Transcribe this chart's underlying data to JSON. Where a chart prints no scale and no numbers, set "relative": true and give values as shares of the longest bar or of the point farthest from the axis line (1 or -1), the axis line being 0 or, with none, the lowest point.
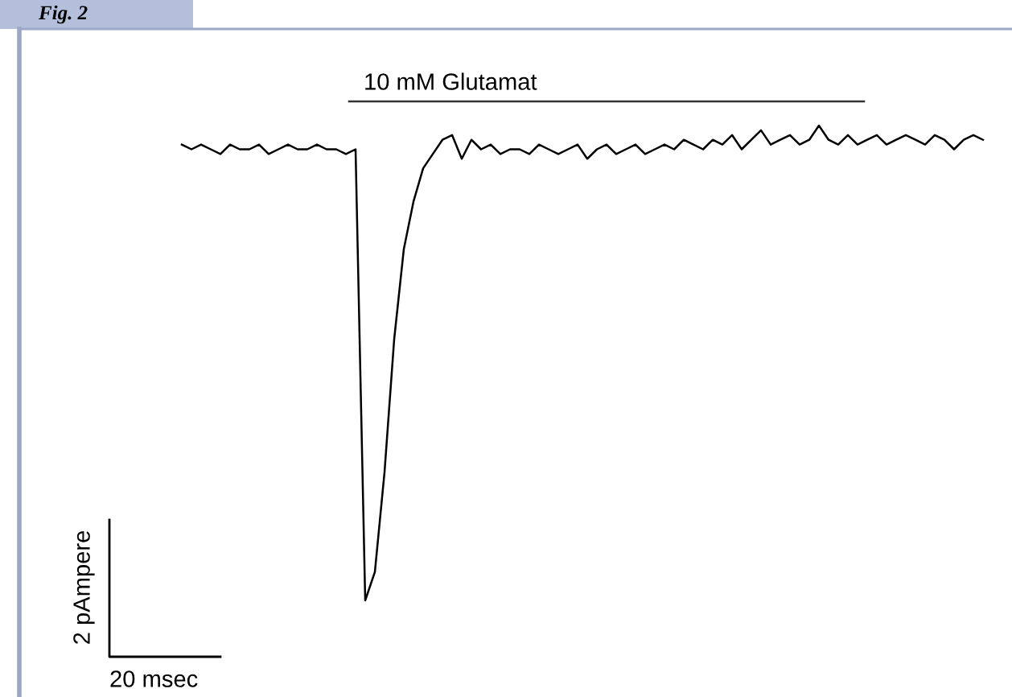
{
  "chart_data": {
    "type": "line",
    "relative": true,
    "title": "Fig. 2",
    "annotations": [
      "10 mM Glutamat",
      "2 pAmpere",
      "20 msec"
    ],
    "color": "#000000",
    "categories": [
      null,
      null,
      null,
      null,
      null,
      null,
      null,
      null,
      null,
      null,
      null,
      null,
      null,
      null,
      null,
      null,
      null,
      null,
      null,
      null,
      null,
      null,
      null,
      null,
      null,
      null,
      null,
      null,
      null,
      null,
      null,
      null,
      null,
      null,
      null,
      null,
      null,
      null,
      null,
      null,
      null,
      null,
      null,
      null,
      null,
      null,
      null,
      null,
      null,
      null,
      null,
      null,
      null,
      null,
      null,
      null,
      null,
      null,
      null,
      null,
      null,
      null,
      null,
      null,
      null,
      null,
      null,
      null,
      null,
      null,
      null,
      null,
      null,
      null,
      null,
      null,
      null,
      null,
      null,
      null,
      null,
      null,
      null,
      null
    ],
    "values": [
      0.96,
      0.95,
      0.96,
      0.95,
      0.94,
      0.96,
      0.95,
      0.95,
      0.96,
      0.94,
      0.95,
      0.96,
      0.95,
      0.95,
      0.96,
      0.95,
      0.95,
      0.94,
      0.95,
      0,
      0.06,
      0.27,
      0.55,
      0.74,
      0.84,
      0.91,
      0.94,
      0.97,
      0.98,
      0.93,
      0.97,
      0.95,
      0.96,
      0.94,
      0.95,
      0.95,
      0.94,
      0.96,
      0.95,
      0.94,
      0.95,
      0.96,
      0.93,
      0.95,
      0.96,
      0.94,
      0.95,
      0.96,
      0.94,
      0.95,
      0.96,
      0.95,
      0.97,
      0.96,
      0.95,
      0.97,
      0.96,
      0.98,
      0.95,
      0.97,
      0.99,
      0.96,
      0.97,
      0.98,
      0.96,
      0.97,
      1.0,
      0.97,
      0.96,
      0.98,
      0.96,
      0.97,
      0.98,
      0.96,
      0.97,
      0.98,
      0.97,
      0.96,
      0.98,
      0.97,
      0.95,
      0.97,
      0.98,
      0.97
    ]
  }
}
